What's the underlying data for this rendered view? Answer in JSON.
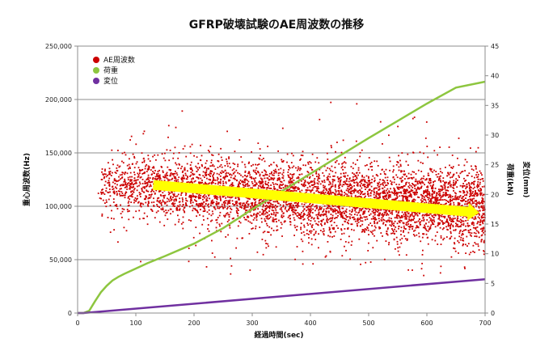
{
  "chart_data": {
    "type": "scatter",
    "title": "GFRP破壊試験のAE周波数の推移",
    "xlabel": "経過時間(sec)",
    "ylabel_left": "重心周波数(Hz)",
    "ylabel_right_1": "荷重(kN)",
    "ylabel_right_2": "変位(mm)",
    "xlim": [
      0,
      700
    ],
    "ylim_left": [
      0,
      250000
    ],
    "ylim_right": [
      0,
      45
    ],
    "x_ticks": [
      "0",
      "100",
      "200",
      "300",
      "400",
      "500",
      "600",
      "700"
    ],
    "y_left_ticks": [
      "0",
      "50,000",
      "100,000",
      "150,000",
      "200,000",
      "250,000"
    ],
    "y_right_ticks": [
      "0",
      "5",
      "10",
      "15",
      "20",
      "25",
      "30",
      "35",
      "40",
      "45"
    ],
    "grid": true,
    "legend_position": "top-left",
    "legend": [
      "AE周波数",
      "荷重",
      "変位"
    ],
    "series": [
      {
        "name": "AE周波数",
        "axis": "left",
        "color": "#cc0000",
        "distribution": "dense scatter from ~35 s to 700 s; band roughly 85,000–150,000 Hz, outliers ~40,000–200,000 Hz; density increasing with time",
        "trend_start": [
          130,
          120000
        ],
        "trend_end": [
          690,
          94000
        ]
      },
      {
        "name": "荷重",
        "axis": "right",
        "color": "#8dc63f",
        "x": [
          0,
          10,
          20,
          30,
          40,
          50,
          60,
          70,
          80,
          100,
          120,
          150,
          200,
          250,
          300,
          350,
          400,
          450,
          500,
          550,
          600,
          650,
          700
        ],
        "y": [
          0,
          0,
          0.4,
          2.0,
          3.5,
          4.6,
          5.5,
          6.1,
          6.6,
          7.5,
          8.4,
          9.6,
          11.7,
          14.3,
          17.5,
          20.5,
          23.5,
          26.5,
          29.5,
          32.4,
          35.3,
          38.0,
          39.0
        ]
      },
      {
        "name": "変位",
        "axis": "right",
        "color": "#7030a0",
        "x": [
          0,
          10,
          700
        ],
        "y": [
          0,
          0,
          5.7
        ]
      }
    ],
    "annotation": {
      "type": "arrow",
      "color": "#ffff00",
      "meaning": "decreasing AE frequency trend",
      "from": [
        130,
        120000
      ],
      "to": [
        690,
        94000
      ]
    }
  }
}
